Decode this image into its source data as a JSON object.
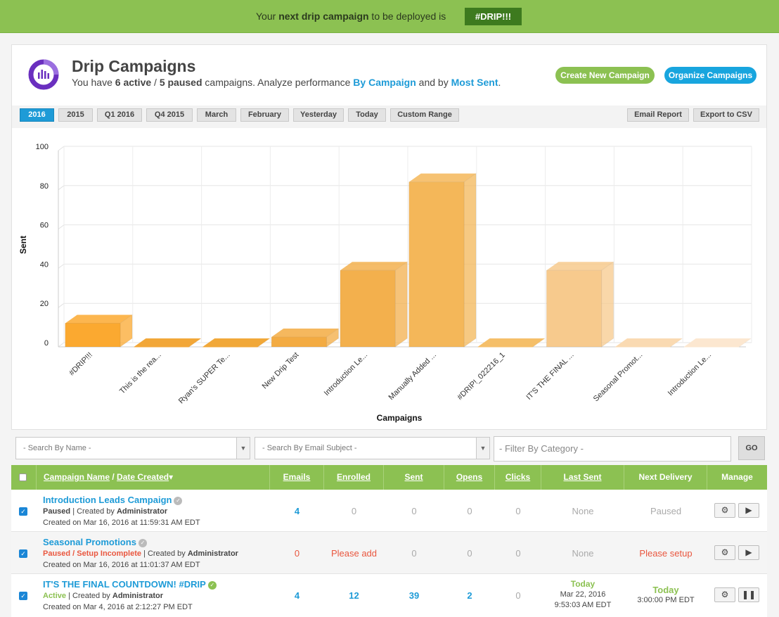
{
  "banner": {
    "prefix": "Your ",
    "bold": "next drip campaign",
    "suffix": " to be deployed is",
    "tag": "#DRIP!!!"
  },
  "header": {
    "title": "Drip Campaigns",
    "sub_prefix": "You have ",
    "active": "6 active",
    "sep": " / ",
    "paused": "5 paused",
    "sub_mid": " campaigns. Analyze performance ",
    "link1": "By Campaign",
    "sub_and": " and by ",
    "link2": "Most Sent",
    "sub_end": ".",
    "create_button": "Create New Campaign",
    "organize_button": "Organize Campaigns"
  },
  "ranges": [
    "2016",
    "2015",
    "Q1 2016",
    "Q4 2015",
    "March",
    "February",
    "Yesterday",
    "Today",
    "Custom Range"
  ],
  "active_range": "2016",
  "report_buttons": {
    "email": "Email Report",
    "export": "Export to CSV"
  },
  "chart_data": {
    "type": "bar",
    "title": "",
    "xlabel": "Campaigns",
    "ylabel": "Sent",
    "ylim": [
      0,
      100
    ],
    "yticks": [
      "0",
      "20",
      "40",
      "60",
      "80",
      "100"
    ],
    "categories": [
      "#DRIP!!!",
      "This is the rea...",
      "Ryan's SUPER Te...",
      "New Drip Test",
      "Introduction Le...",
      "Manually Added ...",
      "#DRIP!_022216_1",
      "IT'S THE FINAL ...",
      "Seasonal Promot...",
      "Introduction Le..."
    ],
    "values": [
      12,
      0,
      0,
      5,
      39,
      84,
      0,
      39,
      0,
      0
    ],
    "colors": [
      "#fba930",
      "#f2a535",
      "#f1a636",
      "#f3ab42",
      "#f3b04d",
      "#f4b759",
      "#f5be67",
      "#f7ca8d",
      "#fad9b0",
      "#fce7cf"
    ],
    "grid": true,
    "legend": "none"
  },
  "filters": {
    "name_placeholder": "- Search By Name -",
    "subject_placeholder": "- Search By Email Subject -",
    "category_placeholder": "- Filter By Category -",
    "go": "GO"
  },
  "table": {
    "headers": {
      "name": "Campaign Name",
      "slash": " / ",
      "date": "Date Created",
      "sort": "▾",
      "emails": "Emails",
      "enrolled": "Enrolled",
      "sent": "Sent",
      "opens": "Opens",
      "clicks": "Clicks",
      "last_sent": "Last Sent",
      "next_delivery": "Next Delivery",
      "manage": "Manage"
    },
    "rows": [
      {
        "name": "Introduction Leads Campaign",
        "status": "Paused",
        "creator_prefix": " | Created by ",
        "creator": "Administrator",
        "created": "Created on Mar 16, 2016 at 11:59:31 AM EDT",
        "emails": "4",
        "enrolled": "0",
        "sent": "0",
        "opens": "0",
        "clicks": "0",
        "last_sent": "None",
        "next_delivery": "Paused"
      },
      {
        "name": "Seasonal Promotions",
        "status": "Paused / Setup Incomplete",
        "creator_prefix": " | Created by ",
        "creator": "Administrator",
        "created": "Created on Mar 16, 2016 at 11:01:37 AM EDT",
        "emails": "0",
        "enrolled": "Please add",
        "sent": "0",
        "opens": "0",
        "clicks": "0",
        "last_sent": "None",
        "next_delivery": "Please setup"
      },
      {
        "name": "IT'S THE FINAL COUNTDOWN! #DRIP",
        "status": "Active",
        "creator_prefix": " | Created by ",
        "creator": "Administrator",
        "created": "Created on Mar 4, 2016 at 2:12:27 PM EDT",
        "emails": "4",
        "enrolled": "12",
        "sent": "39",
        "opens": "2",
        "clicks": "0",
        "last_sent_day": "Today",
        "last_sent_date": "Mar 22, 2016",
        "last_sent_time": "9:53:03 AM EDT",
        "next_day": "Today",
        "next_time": "3:00:00 PM EDT"
      }
    ]
  },
  "icons": {
    "gear": "gear-icon",
    "play": "play-icon",
    "pause": "pause-icon",
    "check": "check-icon"
  }
}
